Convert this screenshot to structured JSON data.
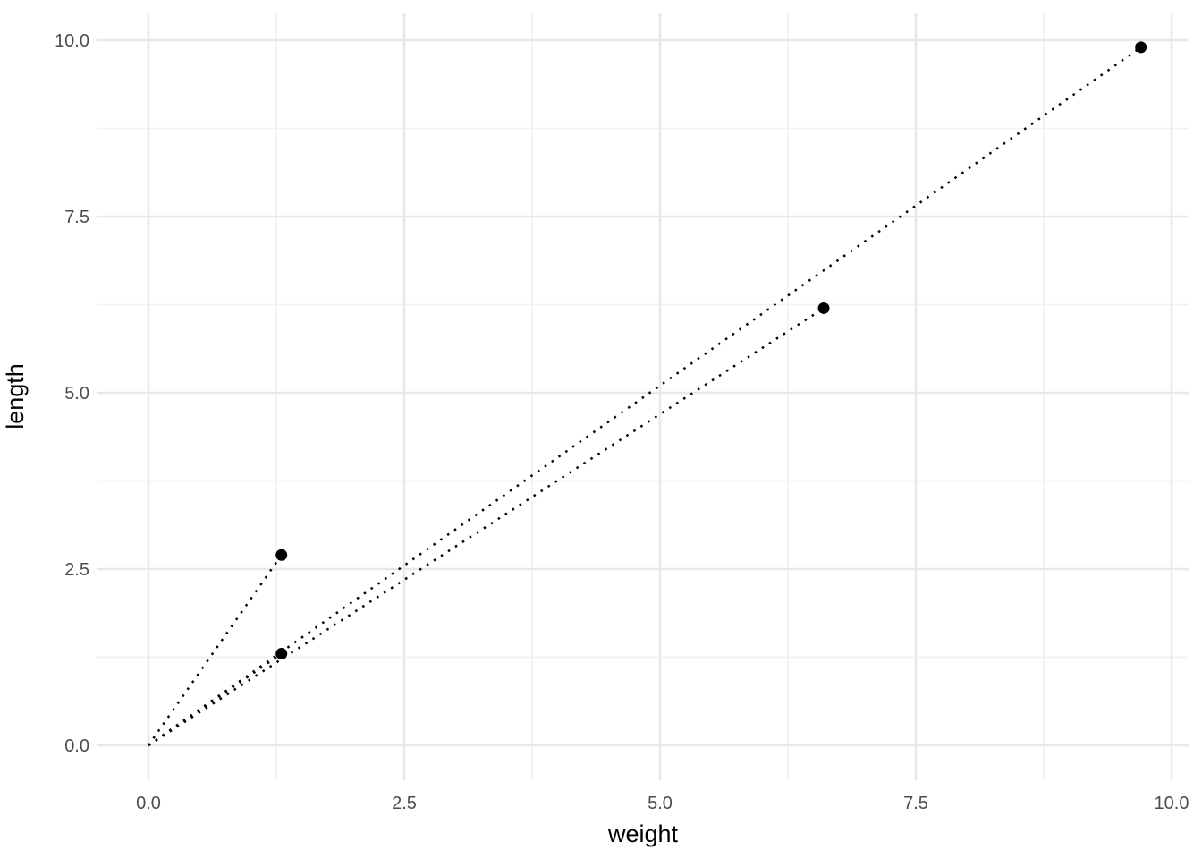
{
  "figure": {
    "background_color": "#ffffff"
  },
  "chart_data": {
    "type": "scatter",
    "title": "",
    "xlabel": "weight",
    "ylabel": "length",
    "x_ticks": [
      0.0,
      2.5,
      5.0,
      7.5,
      10.0
    ],
    "x_tick_labels": [
      "0.0",
      "2.5",
      "5.0",
      "7.5",
      "10.0"
    ],
    "y_ticks": [
      0.0,
      2.5,
      5.0,
      7.5,
      10.0
    ],
    "y_tick_labels": [
      "0.0",
      "2.5",
      "5.0",
      "7.5",
      "10.0"
    ],
    "x_minor_ticks": [
      1.25,
      3.75,
      6.25,
      8.75
    ],
    "y_minor_ticks": [
      1.25,
      3.75,
      6.25,
      8.75
    ],
    "xlim": [
      -0.49,
      10.18
    ],
    "ylim": [
      -0.5,
      10.4
    ],
    "grid": true,
    "legend": false,
    "points": [
      {
        "weight": 1.3,
        "length": 2.7
      },
      {
        "weight": 1.3,
        "length": 1.3
      },
      {
        "weight": 6.6,
        "length": 6.2
      },
      {
        "weight": 9.7,
        "length": 9.9
      }
    ],
    "segments": [
      {
        "x1": 0,
        "y1": 0,
        "x2": 1.3,
        "y2": 2.7,
        "linetype": "dotted"
      },
      {
        "x1": 0,
        "y1": 0,
        "x2": 1.3,
        "y2": 1.3,
        "linetype": "dotted"
      },
      {
        "x1": 0,
        "y1": 0,
        "x2": 6.6,
        "y2": 6.2,
        "linetype": "dotted"
      },
      {
        "x1": 0,
        "y1": 0,
        "x2": 9.7,
        "y2": 9.9,
        "linetype": "dotted"
      }
    ],
    "colors": {
      "point": "#000000",
      "segment": "#000000",
      "grid_major": "#e8e8e8",
      "grid_minor": "#f1f1f1",
      "tick_label": "#4d4d4d",
      "axis_title": "#000000",
      "background": "#ffffff"
    }
  }
}
